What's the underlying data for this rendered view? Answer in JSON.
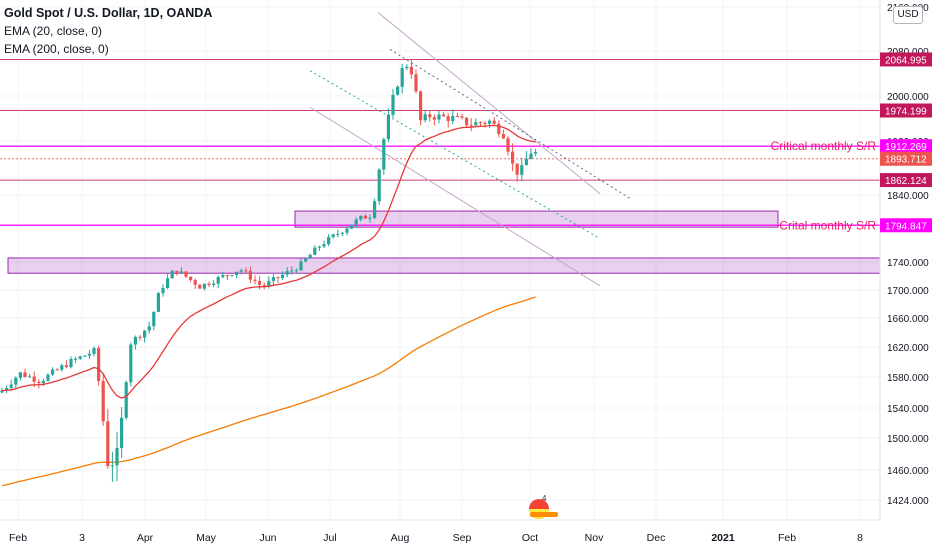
{
  "legend": {
    "title": "Gold Spot / U.S. Dollar, 1D, OANDA",
    "ema20": "EMA (20, close, 0)",
    "ema200": "EMA (200, close, 0)"
  },
  "currency": "USD",
  "colors": {
    "candle_up": "#26a69a",
    "candle_down": "#ef5350",
    "ema20": "#e53935",
    "ema200": "#f57c00",
    "zone": "#9c27b0",
    "level_line": "#c2185b",
    "critical_line": "#ff00ff"
  },
  "chart_data": {
    "type": "candlestick",
    "symbol": "XAUUSD",
    "y_ticks": [
      2160,
      2080,
      2000,
      1920,
      1840,
      1740,
      1700,
      1660,
      1620,
      1580,
      1540,
      1500,
      1460,
      1424
    ],
    "y_tick_labels": [
      "2160.000",
      "2080.000",
      "2000.000",
      "1920.000",
      "1840.000",
      "1740.000",
      "1700.000",
      "1660.000",
      "1620.000",
      "1580.000",
      "1540.000",
      "1500.000",
      "1460.000",
      "1424.000"
    ],
    "x_ticks": [
      "Feb",
      "3",
      "Apr",
      "May",
      "Jun",
      "Jul",
      "Aug",
      "Sep",
      "Oct",
      "Nov",
      "Dec",
      "2021",
      "Feb",
      "8"
    ],
    "price_levels": [
      {
        "value": 2064.995,
        "label": "2064.995",
        "color": "#c2185b"
      },
      {
        "value": 1974.199,
        "label": "1974.199",
        "color": "#c2185b"
      },
      {
        "value": 1912.269,
        "label": "1912.269",
        "color": "#ff00ff"
      },
      {
        "value": 1893.712,
        "label": "1893.712",
        "color": "#ef5350"
      },
      {
        "value": 1862.124,
        "label": "1862.124",
        "color": "#c2185b"
      },
      {
        "value": 1794.847,
        "label": "1794.847",
        "color": "#ff00ff"
      }
    ],
    "annotations": [
      "Critical monthly S/R",
      "Crital monthly S/R"
    ],
    "zones": [
      {
        "from": 1792,
        "to": 1816
      },
      {
        "from": 1724,
        "to": 1746
      }
    ],
    "trend_channel_lines": [
      {
        "from": [
          "Jul",
          2150
        ],
        "to": [
          "Nov",
          1842
        ]
      },
      {
        "from": [
          "Aug",
          2083
        ],
        "to": [
          "Oct",
          1835
        ]
      },
      {
        "from": [
          "Jul",
          2045
        ],
        "to": [
          "Nov",
          1775
        ]
      },
      {
        "from": [
          "Jul",
          1980
        ],
        "to": [
          "Oct",
          1706
        ]
      }
    ],
    "candles_summary": [
      {
        "month": "Feb",
        "open": 1560,
        "close": 1585
      },
      {
        "month": "Mar",
        "open": 1640,
        "close": 1590
      },
      {
        "month": "Apr",
        "open": 1600,
        "close": 1700
      },
      {
        "month": "May",
        "open": 1700,
        "close": 1730
      },
      {
        "month": "Jun",
        "open": 1730,
        "close": 1770
      },
      {
        "month": "Jul",
        "open": 1770,
        "close": 1970
      },
      {
        "month": "Aug",
        "open": 1970,
        "close": 1965
      },
      {
        "month": "Sep",
        "open": 1965,
        "close": 1885
      },
      {
        "month": "Oct",
        "open": 1885,
        "close": 1900
      }
    ]
  }
}
